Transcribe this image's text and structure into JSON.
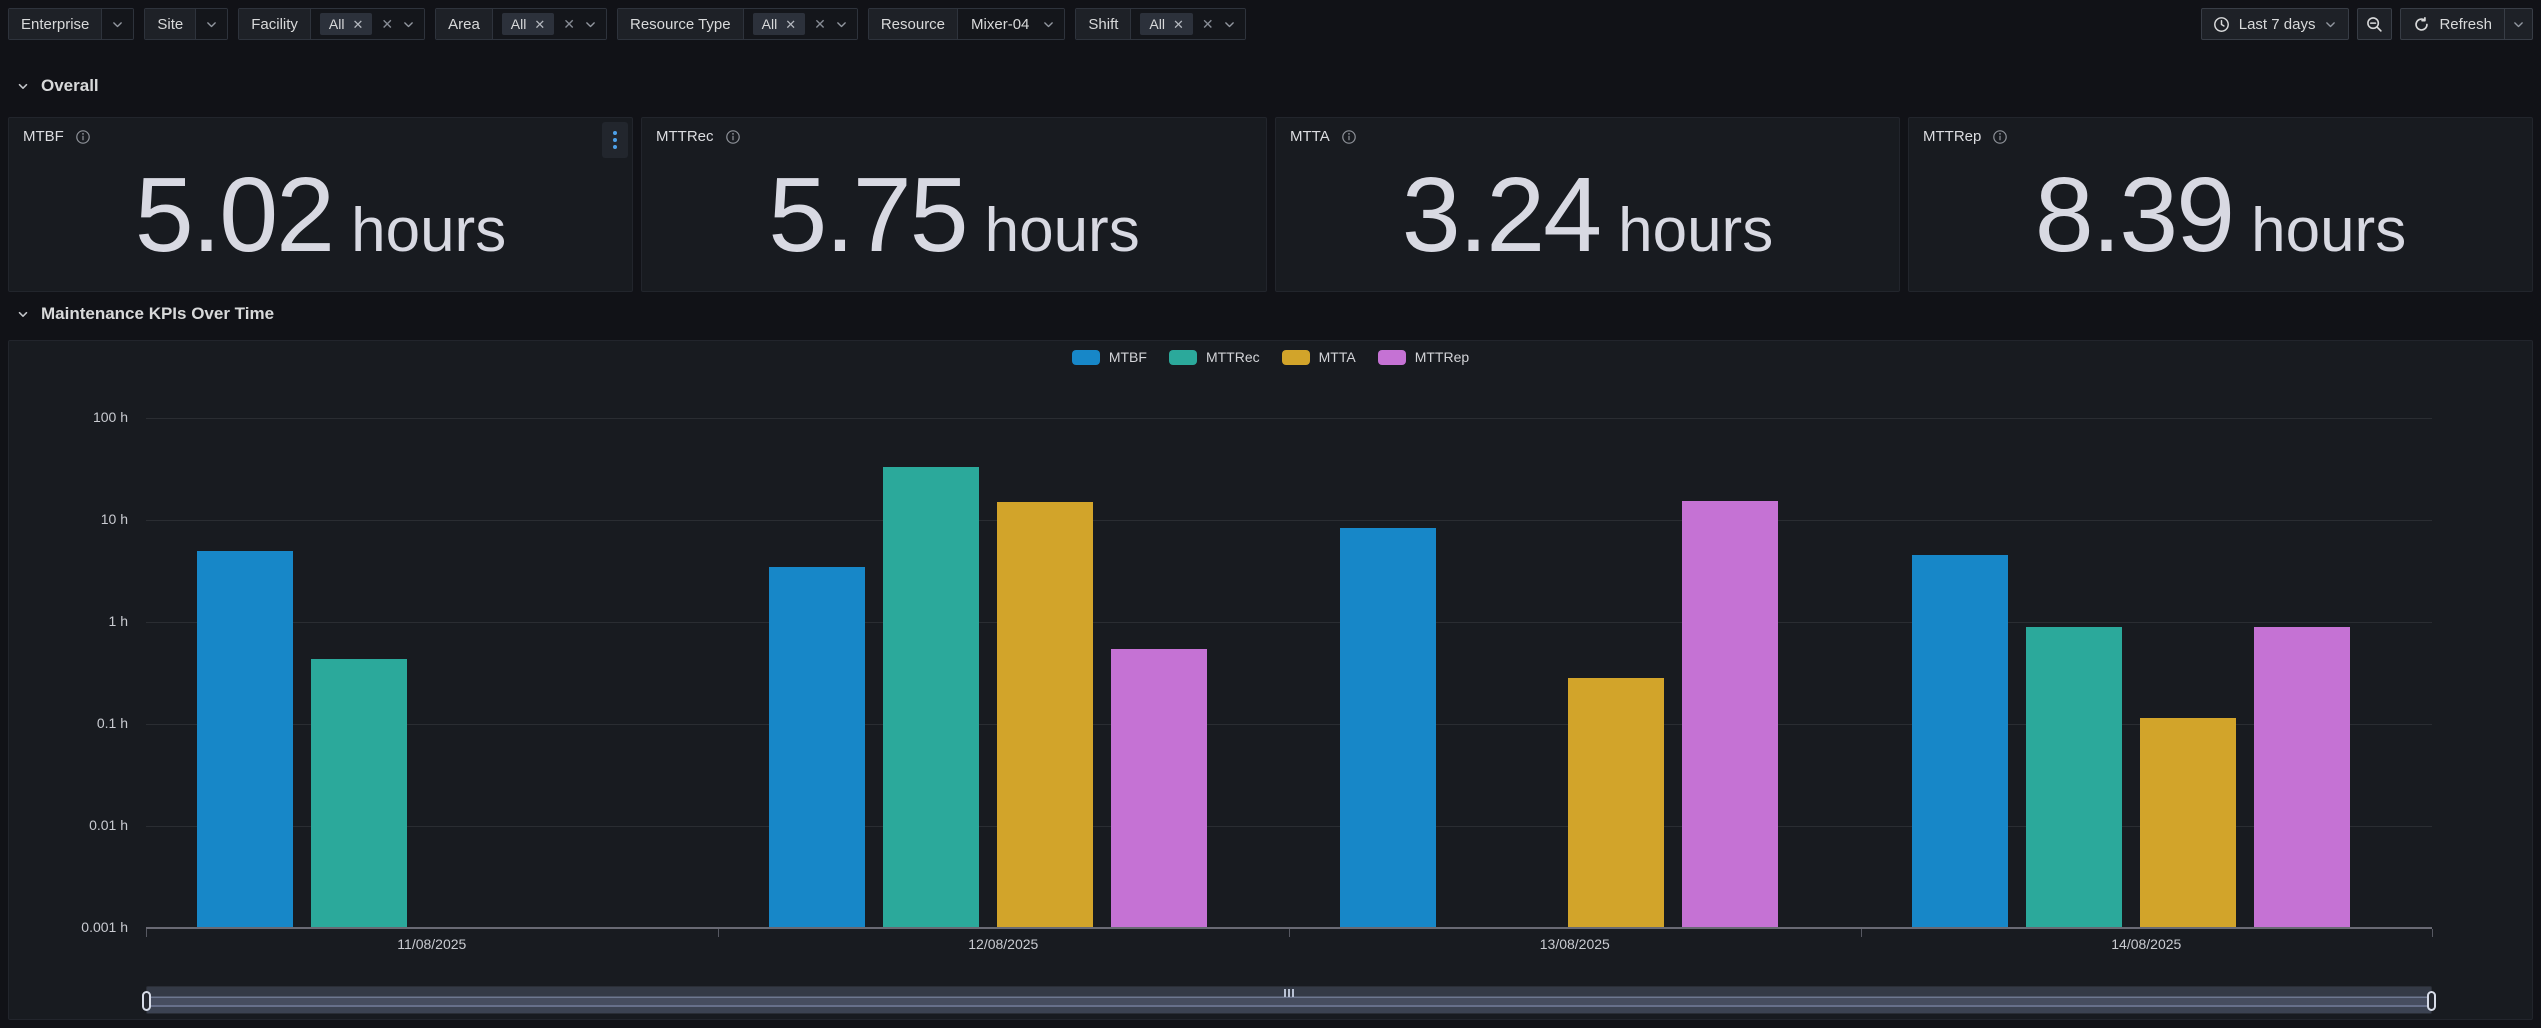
{
  "filter_bar": {
    "enterprise": {
      "label": "Enterprise"
    },
    "site": {
      "label": "Site"
    },
    "facility": {
      "label": "Facility",
      "chip": "All"
    },
    "area": {
      "label": "Area",
      "chip": "All"
    },
    "resource_type": {
      "label": "Resource Type",
      "chip": "All"
    },
    "resource": {
      "label": "Resource",
      "value": "Mixer-04"
    },
    "shift": {
      "label": "Shift",
      "chip": "All"
    }
  },
  "toolbar": {
    "time_range": "Last 7 days",
    "refresh_label": "Refresh"
  },
  "sections": {
    "overall": "Overall",
    "kpis_over_time": "Maintenance KPIs Over Time"
  },
  "stats": [
    {
      "title": "MTBF",
      "value": "5.02",
      "unit": "hours"
    },
    {
      "title": "MTTRec",
      "value": "5.75",
      "unit": "hours"
    },
    {
      "title": "MTTA",
      "value": "3.24",
      "unit": "hours"
    },
    {
      "title": "MTTRep",
      "value": "8.39",
      "unit": "hours"
    }
  ],
  "chart_data": {
    "type": "bar",
    "title": "Maintenance KPIs Over Time",
    "categories": [
      "11/08/2025",
      "12/08/2025",
      "13/08/2025",
      "14/08/2025"
    ],
    "series": [
      {
        "name": "MTBF",
        "color": "#1787c8",
        "values": [
          5.0,
          3.5,
          8.3,
          4.5
        ]
      },
      {
        "name": "MTTRec",
        "color": "#2ba99b",
        "values": [
          0.43,
          33,
          null,
          0.9
        ]
      },
      {
        "name": "MTTA",
        "color": "#d2a42a",
        "values": [
          null,
          15,
          0.28,
          0.115
        ]
      },
      {
        "name": "MTTRep",
        "color": "#c572d4",
        "values": [
          null,
          0.55,
          15.5,
          0.9
        ]
      }
    ],
    "yscale": "log",
    "ylim": [
      0.001,
      100
    ],
    "yticks": [
      {
        "value": 100,
        "label": "100 h"
      },
      {
        "value": 10,
        "label": "10 h"
      },
      {
        "value": 1,
        "label": "1 h"
      },
      {
        "value": 0.1,
        "label": "0.1 h"
      },
      {
        "value": 0.01,
        "label": "0.01 h"
      },
      {
        "value": 0.001,
        "label": "0.001 h"
      }
    ],
    "legend_position": "top",
    "grid": true
  }
}
